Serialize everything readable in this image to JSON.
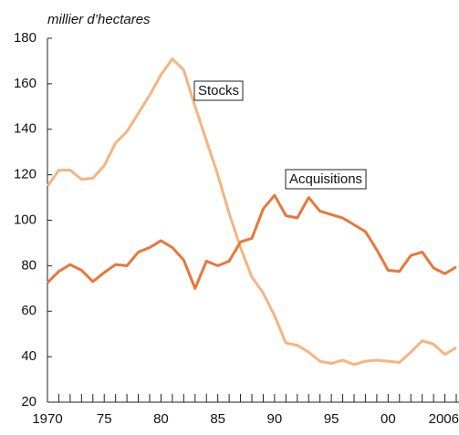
{
  "chart_data": {
    "type": "line",
    "ylabel": "millier d’hectares",
    "x": [
      1970,
      1971,
      1972,
      1973,
      1974,
      1975,
      1976,
      1977,
      1978,
      1979,
      1980,
      1981,
      1982,
      1983,
      1984,
      1985,
      1986,
      1987,
      1988,
      1989,
      1990,
      1991,
      1992,
      1993,
      1994,
      1995,
      1996,
      1997,
      1998,
      1999,
      2000,
      2001,
      2002,
      2003,
      2004,
      2005,
      2006
    ],
    "series": [
      {
        "name": "Stocks",
        "color": "#f6b480",
        "values": [
          115,
          122,
          122,
          118,
          118.5,
          124,
          134,
          139,
          147,
          155,
          164,
          171,
          166,
          150,
          135,
          120,
          103,
          88,
          75,
          68,
          58,
          46,
          45,
          42,
          38,
          37,
          38.5,
          36.5,
          38,
          38.5,
          38,
          37.5,
          42,
          47,
          45.5,
          41,
          44
        ]
      },
      {
        "name": "Acquisitions",
        "color": "#e8773a",
        "values": [
          72.5,
          77.5,
          80.5,
          78,
          73,
          77,
          80.5,
          80,
          86,
          88,
          91,
          88,
          82.5,
          70,
          82,
          80,
          82,
          90.5,
          92,
          105,
          111,
          102,
          101,
          110,
          104,
          102.5,
          101,
          98,
          95,
          87,
          78,
          77.5,
          84.5,
          86,
          79,
          76.5,
          79.5
        ]
      }
    ],
    "xlim": [
      1970,
      2006
    ],
    "xticks": [
      1970,
      {
        "value": 1975,
        "label": "75"
      },
      {
        "value": 1980,
        "label": "80"
      },
      {
        "value": 1985,
        "label": "85"
      },
      {
        "value": 1990,
        "label": "90"
      },
      {
        "value": 1995,
        "label": "95"
      },
      {
        "value": 2000,
        "label": "00"
      },
      2006
    ],
    "ylim": [
      20,
      180
    ],
    "yticks": [
      20,
      40,
      60,
      80,
      100,
      120,
      140,
      160,
      180
    ],
    "grid": false
  }
}
